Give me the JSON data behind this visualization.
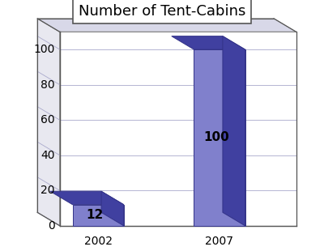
{
  "title": "Number of Tent-Cabins",
  "categories": [
    "2002",
    "2007"
  ],
  "values": [
    12,
    100
  ],
  "bar_face_color": "#8080CC",
  "bar_top_color": "#4040A0",
  "bar_right_color": "#4040A0",
  "bar_labels": [
    "12",
    "100"
  ],
  "ylim": [
    0,
    110
  ],
  "yticks": [
    0,
    20,
    40,
    60,
    80,
    100
  ],
  "background_color": "#ffffff",
  "title_fontsize": 13,
  "label_fontsize": 11,
  "tick_fontsize": 10,
  "title_box_edge": "#555555"
}
